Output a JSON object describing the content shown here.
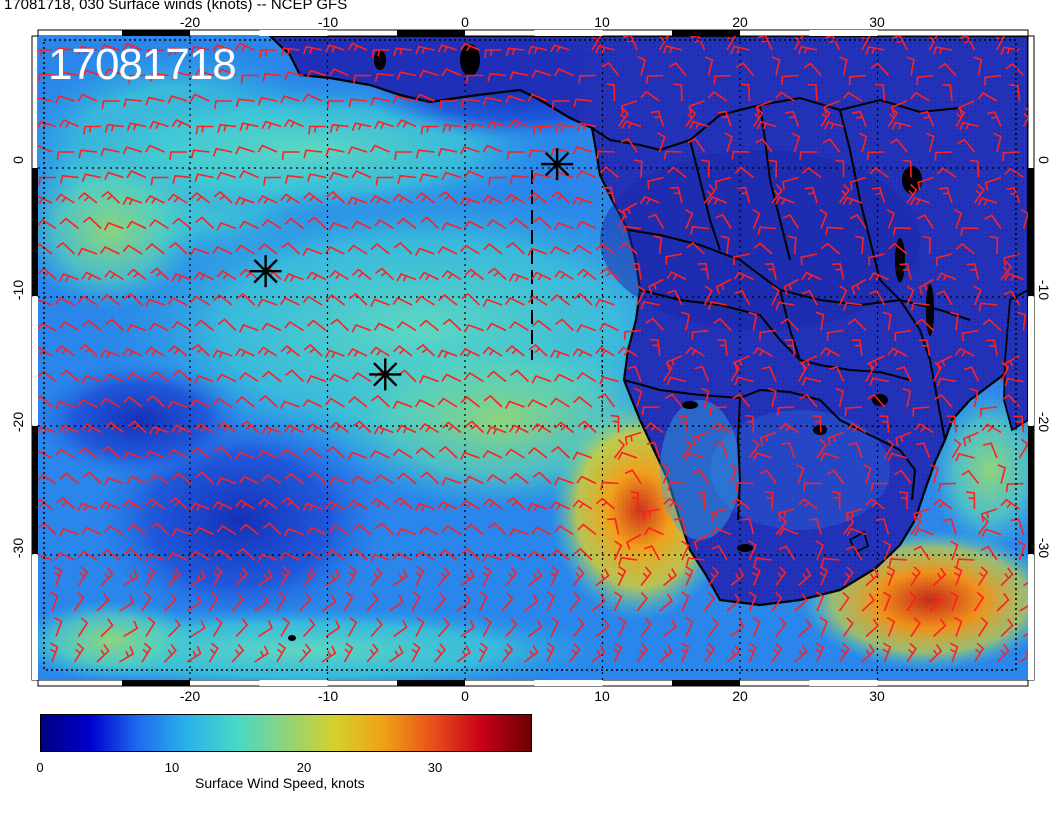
{
  "title": "17081718, 030 Surface winds (knots) -- NCEP GFS",
  "date_stamp": "17081718",
  "colorbar": {
    "label": "Surface Wind Speed, knots",
    "ticks": [
      "0",
      "10",
      "20",
      "30"
    ],
    "tick_values": [
      0,
      10,
      20,
      30
    ],
    "range": [
      0,
      37
    ],
    "colors": [
      "#000080",
      "#0000cd",
      "#1e6cf0",
      "#2bb3e8",
      "#48d8c8",
      "#8fd37a",
      "#d6d12a",
      "#f0a018",
      "#e8501a",
      "#c8001a",
      "#6e0000"
    ]
  },
  "axes": {
    "lon_ticks": [
      "-20",
      "-10",
      "0",
      "10",
      "20",
      "30"
    ],
    "lon_values": [
      -20,
      -10,
      0,
      10,
      20,
      30
    ],
    "lat_ticks": [
      "0",
      "-10",
      "-20",
      "-30"
    ],
    "lat_values": [
      0,
      -10,
      -20,
      -30
    ]
  },
  "markers": [
    {
      "name": "marker-1",
      "lon": 6.7,
      "lat": 0.3
    },
    {
      "name": "marker-2",
      "lon": -14.5,
      "lat": -8.0
    },
    {
      "name": "marker-3",
      "lon": -5.8,
      "lat": -16.0
    }
  ],
  "colors": {
    "barb": "#ff2020",
    "land": "#1f2fb0",
    "ocean_low": "#2a7ee8",
    "ocean_mid": "#3fc9d8",
    "ocean_high": "#e7d22a"
  }
}
